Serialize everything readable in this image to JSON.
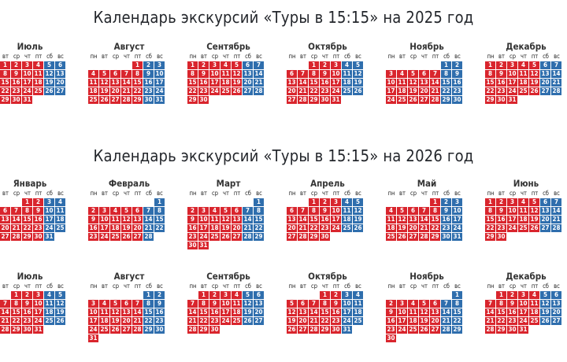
{
  "colors": {
    "working_day": "#d9252d",
    "weekend": "#2f6ead"
  },
  "weekdays": [
    "пн",
    "вт",
    "ср",
    "чт",
    "пт",
    "сб",
    "вс"
  ],
  "calendars": [
    {
      "title": "Календарь экскурсий «Туры в 15:15» на 2025 год",
      "year": 2025,
      "months": [
        {
          "name": "Июль",
          "num": 7
        },
        {
          "name": "Август",
          "num": 8
        },
        {
          "name": "Сентябрь",
          "num": 9
        },
        {
          "name": "Октябрь",
          "num": 10
        },
        {
          "name": "Ноябрь",
          "num": 11
        },
        {
          "name": "Декабрь",
          "num": 12
        }
      ]
    },
    {
      "title": "Календарь экскурсий «Туры в 15:15» на 2026 год",
      "year": 2026,
      "months": [
        {
          "name": "Январь",
          "num": 1
        },
        {
          "name": "Февраль",
          "num": 2
        },
        {
          "name": "Март",
          "num": 3
        },
        {
          "name": "Апрель",
          "num": 4
        },
        {
          "name": "Май",
          "num": 5
        },
        {
          "name": "Июнь",
          "num": 6
        },
        {
          "name": "Июль",
          "num": 7
        },
        {
          "name": "Август",
          "num": 8
        },
        {
          "name": "Сентябрь",
          "num": 9
        },
        {
          "name": "Октябрь",
          "num": 10
        },
        {
          "name": "Ноябрь",
          "num": 11
        },
        {
          "name": "Декабрь",
          "num": 12
        }
      ]
    }
  ]
}
